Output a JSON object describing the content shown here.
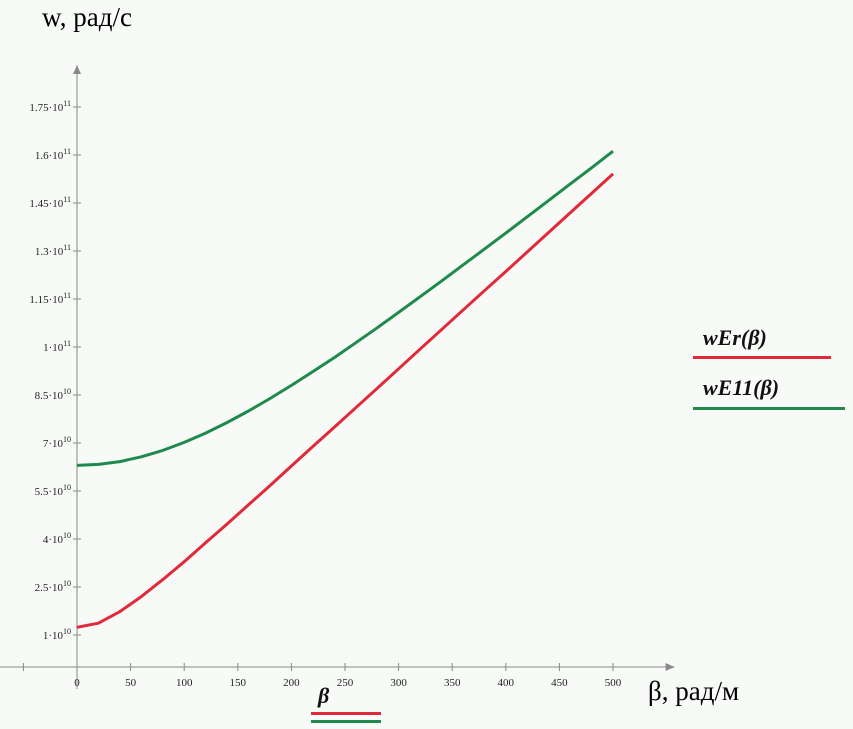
{
  "chart_data": {
    "type": "line",
    "ylabel": "w,  рад/с",
    "xlabel": "β, рад/м",
    "x_var_label": "β",
    "xlim": [
      -50,
      550
    ],
    "ylim": [
      0,
      185000000000.0
    ],
    "x_ticks": [
      0,
      50,
      100,
      150,
      200,
      250,
      300,
      350,
      400,
      450,
      500
    ],
    "y_ticks": [
      {
        "value": 10000000000.0,
        "mantissa": "1",
        "exp": "10"
      },
      {
        "value": 25000000000.0,
        "mantissa": "2.5",
        "exp": "10"
      },
      {
        "value": 40000000000.0,
        "mantissa": "4",
        "exp": "10"
      },
      {
        "value": 55000000000.0,
        "mantissa": "5.5",
        "exp": "10"
      },
      {
        "value": 70000000000.0,
        "mantissa": "7",
        "exp": "10"
      },
      {
        "value": 85000000000.0,
        "mantissa": "8.5",
        "exp": "10"
      },
      {
        "value": 100000000000.0,
        "mantissa": "1",
        "exp": "11"
      },
      {
        "value": 115000000000.0,
        "mantissa": "1.15",
        "exp": "11"
      },
      {
        "value": 130000000000.0,
        "mantissa": "1.3",
        "exp": "11"
      },
      {
        "value": 145000000000.0,
        "mantissa": "1.45",
        "exp": "11"
      },
      {
        "value": 160000000000.0,
        "mantissa": "1.6",
        "exp": "11"
      },
      {
        "value": 175000000000.0,
        "mantissa": "1.75",
        "exp": "11"
      }
    ],
    "tick_multiplier": "·10",
    "x": [
      0,
      20,
      40,
      60,
      80,
      100,
      120,
      140,
      160,
      180,
      200,
      220,
      240,
      260,
      280,
      300,
      320,
      340,
      360,
      380,
      400,
      420,
      440,
      460,
      480,
      500
    ],
    "series": [
      {
        "name": "wEr(β)",
        "color": "#e02a3a",
        "values": [
          12400000000.0,
          13700000000.0,
          17300000000.0,
          22000000000.0,
          27300000000.0,
          32900000000.0,
          38800000000.0,
          44700000000.0,
          50700000000.0,
          56700000000.0,
          62800000000.0,
          68900000000.0,
          74900000000.0,
          81000000000.0,
          87100000000.0,
          93200000000.0,
          99300000000.0,
          105400000000.0,
          111500000000.0,
          117600000000.0,
          123600000000.0,
          129700000000.0,
          135800000000.0,
          141900000000.0,
          148000000000.0,
          154100000000.0
        ]
      },
      {
        "name": "wE11(β)",
        "color": "#1f8a4c",
        "values": [
          63000000000.0,
          63300000000.0,
          64200000000.0,
          65700000000.0,
          67700000000.0,
          70200000000.0,
          73100000000.0,
          76400000000.0,
          80000000000.0,
          83900000000.0,
          88000000000.0,
          92300000000.0,
          96700000000.0,
          101300000000.0,
          106000000000.0,
          110800000000.0,
          115700000000.0,
          120600000000.0,
          125600000000.0,
          130600000000.0,
          135600000000.0,
          140700000000.0,
          145800000000.0,
          150900000000.0,
          156000000000.0,
          161200000000.0
        ]
      }
    ]
  }
}
